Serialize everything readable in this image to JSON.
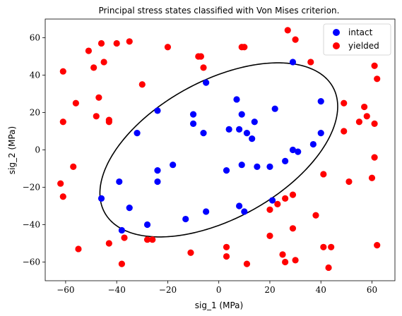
{
  "chart_data": {
    "type": "scatter",
    "title": "Principal stress states classified with Von Mises criterion.",
    "xlabel": "sig_1 (MPa)",
    "ylabel": "sig_2 (MPa)",
    "xlim": [
      -68,
      69
    ],
    "ylim": [
      -70,
      70
    ],
    "xticks": [
      -60,
      -40,
      -20,
      0,
      20,
      40,
      60
    ],
    "yticks": [
      -60,
      -40,
      -20,
      0,
      20,
      40,
      60
    ],
    "grid": false,
    "legend_position": "top-right",
    "series": [
      {
        "name": "intact",
        "color": "#0000ff",
        "points": [
          [
            29,
            47
          ],
          [
            -5,
            36
          ],
          [
            7,
            27
          ],
          [
            -24,
            21
          ],
          [
            22,
            22
          ],
          [
            40,
            26
          ],
          [
            -10,
            19
          ],
          [
            9,
            19
          ],
          [
            -10,
            14
          ],
          [
            14,
            15
          ],
          [
            -32,
            9
          ],
          [
            -6,
            9
          ],
          [
            4,
            11
          ],
          [
            8,
            11
          ],
          [
            11,
            9
          ],
          [
            13,
            6
          ],
          [
            40,
            9
          ],
          [
            37,
            3
          ],
          [
            29,
            0
          ],
          [
            31,
            -1
          ],
          [
            26,
            -6
          ],
          [
            9,
            -8
          ],
          [
            15,
            -9
          ],
          [
            20,
            -9
          ],
          [
            -18,
            -8
          ],
          [
            -24,
            -11
          ],
          [
            3,
            -11
          ],
          [
            -24,
            -17
          ],
          [
            -39,
            -17
          ],
          [
            -46,
            -26
          ],
          [
            21,
            -27
          ],
          [
            -35,
            -31
          ],
          [
            -5,
            -33
          ],
          [
            8,
            -30
          ],
          [
            10,
            -33
          ],
          [
            -13,
            -37
          ],
          [
            -28,
            -40
          ],
          [
            -38,
            -43
          ]
        ]
      },
      {
        "name": "yielded",
        "color": "#ff0000",
        "points": [
          [
            27,
            64
          ],
          [
            30,
            59
          ],
          [
            -51,
            53
          ],
          [
            -46,
            57
          ],
          [
            -40,
            57
          ],
          [
            -35,
            58
          ],
          [
            -20,
            55
          ],
          [
            9,
            55
          ],
          [
            10,
            55
          ],
          [
            -8,
            50
          ],
          [
            -7,
            50
          ],
          [
            -6,
            44
          ],
          [
            -45,
            47
          ],
          [
            -49,
            44
          ],
          [
            36,
            47
          ],
          [
            -61,
            42
          ],
          [
            61,
            45
          ],
          [
            62,
            38
          ],
          [
            -30,
            35
          ],
          [
            -47,
            28
          ],
          [
            -56,
            25
          ],
          [
            57,
            23
          ],
          [
            58,
            18
          ],
          [
            -48,
            18
          ],
          [
            -43,
            15
          ],
          [
            -43,
            16
          ],
          [
            -61,
            15
          ],
          [
            55,
            15
          ],
          [
            61,
            14
          ],
          [
            49,
            25
          ],
          [
            49,
            10
          ],
          [
            -57,
            -9
          ],
          [
            61,
            -4
          ],
          [
            41,
            -13
          ],
          [
            -62,
            -18
          ],
          [
            -61,
            -25
          ],
          [
            51,
            -17
          ],
          [
            60,
            -15
          ],
          [
            20,
            -32
          ],
          [
            23,
            -29
          ],
          [
            26,
            -26
          ],
          [
            29,
            -24
          ],
          [
            38,
            -35
          ],
          [
            29,
            -42
          ],
          [
            20,
            -46
          ],
          [
            -37,
            -47
          ],
          [
            -28,
            -48
          ],
          [
            -26,
            -48
          ],
          [
            -43,
            -50
          ],
          [
            -55,
            -53
          ],
          [
            3,
            -52
          ],
          [
            -11,
            -55
          ],
          [
            25,
            -56
          ],
          [
            3,
            -57
          ],
          [
            26,
            -60
          ],
          [
            30,
            -59
          ],
          [
            41,
            -52
          ],
          [
            44,
            -52
          ],
          [
            62,
            -51
          ],
          [
            -38,
            -61
          ],
          [
            11,
            -61
          ],
          [
            43,
            -63
          ]
        ]
      }
    ],
    "ellipse": {
      "color": "#000000",
      "center": [
        0,
        0
      ],
      "semi_major": 57,
      "semi_minor": 33,
      "rotation_deg": 45
    }
  }
}
